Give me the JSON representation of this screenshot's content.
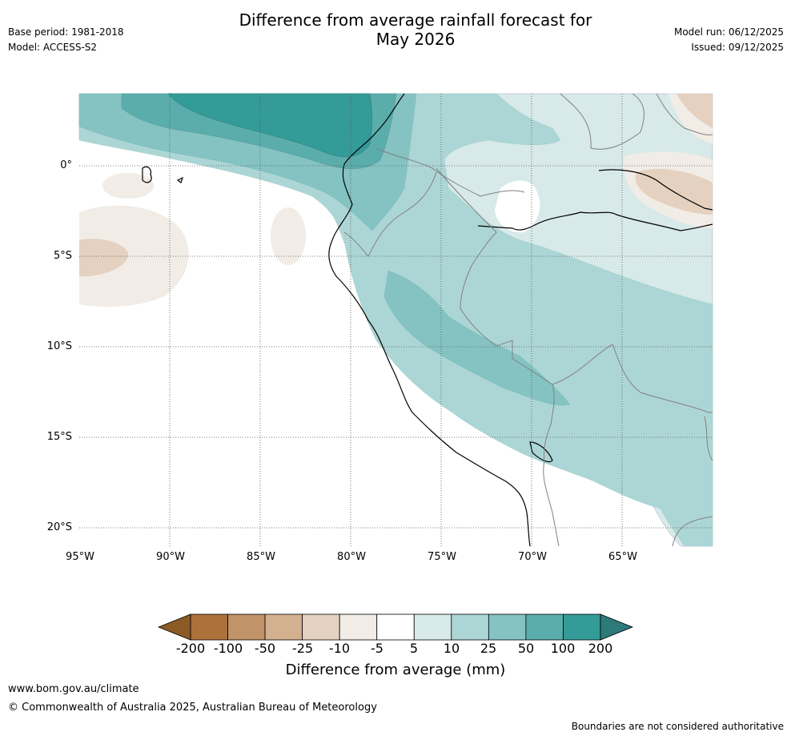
{
  "header": {
    "base_period": "Base period: 1981-2018",
    "model": "Model: ACCESS-S2",
    "title_line1": "Difference from average rainfall forecast for",
    "title_line2": "May 2026",
    "model_run": "Model run: 06/12/2025",
    "issued": "Issued: 09/12/2025"
  },
  "map": {
    "extent": {
      "lon_min": -95,
      "lon_max": -60,
      "lat_min": -21,
      "lat_max": 4
    },
    "lat_labels": [
      {
        "lat": 0,
        "label": "0°"
      },
      {
        "lat": -5,
        "label": "5°S"
      },
      {
        "lat": -10,
        "label": "10°S"
      },
      {
        "lat": -15,
        "label": "15°S"
      },
      {
        "lat": -20,
        "label": "20°S"
      }
    ],
    "lon_labels": [
      {
        "lon": -95,
        "label": "95°W"
      },
      {
        "lon": -90,
        "label": "90°W"
      },
      {
        "lon": -85,
        "label": "85°W"
      },
      {
        "lon": -80,
        "label": "80°W"
      },
      {
        "lon": -75,
        "label": "75°W"
      },
      {
        "lon": -70,
        "label": "70°W"
      },
      {
        "lon": -65,
        "label": "65°W"
      }
    ],
    "colors": {
      "ocean_bg": "#ffffff",
      "coast": "#000000",
      "borders": "#808080",
      "grid": "#555555"
    }
  },
  "colorbar": {
    "label": "Difference from average (mm)",
    "ticks": [
      "-200",
      "-100",
      "-50",
      "-25",
      "-10",
      "-5",
      "5",
      "10",
      "25",
      "50",
      "100",
      "200"
    ],
    "under_color": "#8c5a25",
    "over_color": "#2c7a79",
    "colors": [
      "#ad723c",
      "#c19368",
      "#d3b08f",
      "#e4d1bf",
      "#f1ece6",
      "#ffffff",
      "#d7e9e8",
      "#acd6d5",
      "#84c3c1",
      "#5aadab",
      "#339b98"
    ]
  },
  "footer": {
    "url": "www.bom.gov.au/climate",
    "copyright": "© Commonwealth of Australia 2025, Australian Bureau of Meteorology",
    "disclaimer": "Boundaries are not considered authoritative"
  }
}
